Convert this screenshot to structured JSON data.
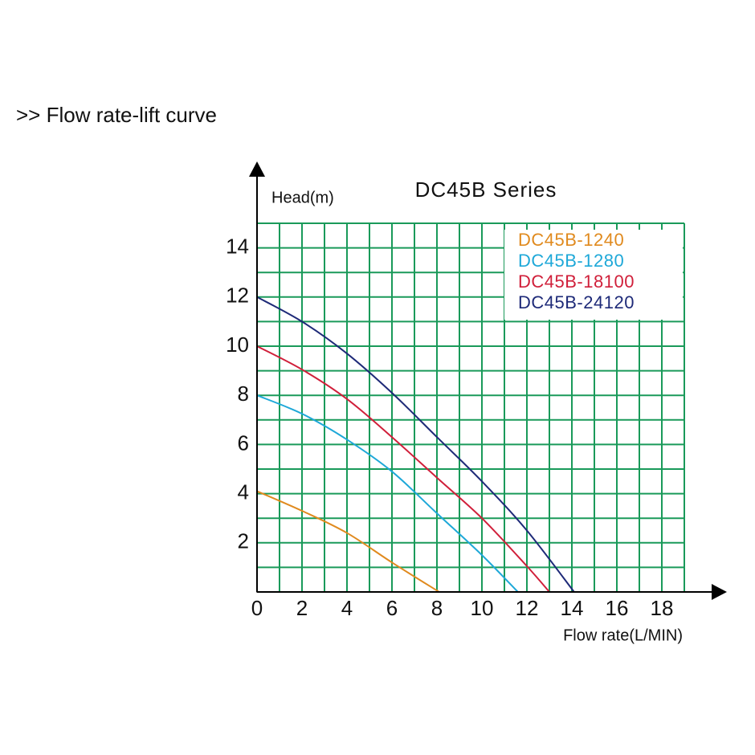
{
  "header": {
    "title": ">> Flow rate-lift curve"
  },
  "chart_data": {
    "type": "line",
    "title": "DC45B Series",
    "y_label": "Head(m)",
    "x_label": "Flow rate(L/MIN)",
    "xlim": [
      0,
      19
    ],
    "ylim": [
      0,
      15
    ],
    "xticks": [
      0,
      2,
      4,
      6,
      8,
      10,
      12,
      14,
      16,
      18
    ],
    "yticks": [
      2,
      4,
      6,
      8,
      10,
      12,
      14
    ],
    "grid": true,
    "grid_step": 1,
    "grid_color": "#1a9a5a",
    "legend": "upper right",
    "series": [
      {
        "name": "DC45B-1240",
        "color": "#e08a1e",
        "x": [
          0,
          2,
          4,
          6,
          8.1
        ],
        "values": [
          4.1,
          3.3,
          2.4,
          1.2,
          0
        ]
      },
      {
        "name": "DC45B-1280",
        "color": "#1ea8d8",
        "x": [
          0,
          2,
          4,
          6,
          8,
          10,
          11.6
        ],
        "values": [
          8,
          7.25,
          6.2,
          4.9,
          3.2,
          1.5,
          0
        ]
      },
      {
        "name": "DC45B-18100",
        "color": "#d01f3a",
        "x": [
          0,
          2,
          4,
          6,
          8,
          10,
          12,
          13
        ],
        "values": [
          10,
          9.05,
          7.85,
          6.3,
          4.65,
          3.0,
          1.05,
          0
        ]
      },
      {
        "name": "DC45B-24120",
        "color": "#1e2a78",
        "x": [
          0,
          2,
          4,
          6,
          8,
          10,
          12,
          14.1
        ],
        "values": [
          12,
          11.0,
          9.7,
          8.1,
          6.3,
          4.5,
          2.5,
          0
        ]
      }
    ]
  }
}
